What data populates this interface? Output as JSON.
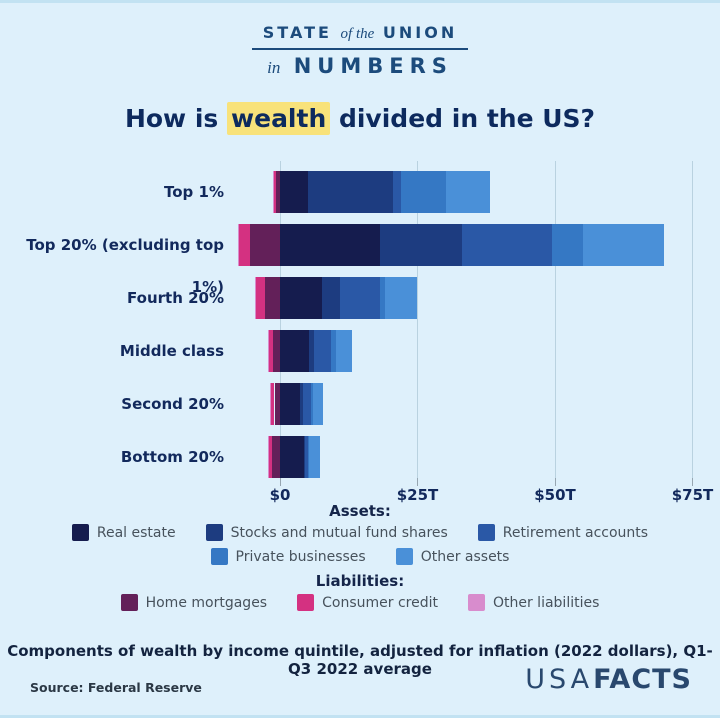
{
  "masthead": {
    "state": "STATE",
    "of_the": "of the",
    "union": "UNION",
    "in": "in",
    "numbers": "NUMBERS"
  },
  "title": {
    "pre": "How is ",
    "highlight": "wealth",
    "post": " divided in the US?"
  },
  "chart_data": {
    "type": "bar",
    "orientation": "horizontal",
    "stacked": true,
    "unit": "trillions of dollars",
    "title": "How is wealth divided in the US?",
    "categories": [
      "Top 1%",
      "Top 20% (excluding top 1%)",
      "Fourth 20%",
      "Middle class",
      "Second 20%",
      "Bottom 20%"
    ],
    "asset_series": [
      {
        "name": "Real estate",
        "color": "#151c4e",
        "values": [
          5.0,
          18.2,
          7.6,
          5.2,
          3.7,
          4.3
        ]
      },
      {
        "name": "Stocks and mutual fund shares",
        "color": "#1d3c80",
        "values": [
          15.5,
          14.9,
          3.3,
          0.9,
          0.4,
          0.2
        ]
      },
      {
        "name": "Retirement accounts",
        "color": "#2a58a6",
        "values": [
          1.5,
          16.4,
          7.3,
          3.1,
          1.5,
          0.5
        ]
      },
      {
        "name": "Private businesses",
        "color": "#3578c4",
        "values": [
          8.2,
          5.5,
          0.9,
          0.9,
          0.4,
          0.3
        ]
      },
      {
        "name": "Other assets",
        "color": "#4a90d8",
        "values": [
          7.9,
          14.9,
          5.8,
          3.0,
          1.9,
          2.0
        ]
      }
    ],
    "liability_series": [
      {
        "name": "Home mortgages",
        "color": "#632059",
        "values": [
          -0.7,
          -5.5,
          -2.7,
          -1.2,
          -1.0,
          -1.4
        ]
      },
      {
        "name": "Consumer credit",
        "color": "#d43181",
        "values": [
          -0.4,
          -1.9,
          -1.6,
          -0.8,
          -0.7,
          -0.7
        ]
      },
      {
        "name": "Other liabilities",
        "color": "#d88ccd",
        "values": [
          -0.2,
          -0.3,
          -0.3,
          -0.1,
          -0.1,
          -0.1
        ]
      }
    ],
    "x_ticks": [
      "$0",
      "$25T",
      "$50T",
      "$75T"
    ],
    "x_tick_values": [
      0,
      25,
      50,
      75
    ],
    "xlim": [
      -8,
      80
    ],
    "grid": true,
    "legend_position": "bottom"
  },
  "legend": {
    "assets_heading": "Assets:",
    "liabilities_heading": "Liabilities:"
  },
  "caption": "Components of wealth by income quintile, adjusted for inflation (2022 dollars), Q1-Q3 2022 average",
  "source": "Source: Federal Reserve",
  "logo": {
    "usa": "USA",
    "facts": "FACTS"
  }
}
